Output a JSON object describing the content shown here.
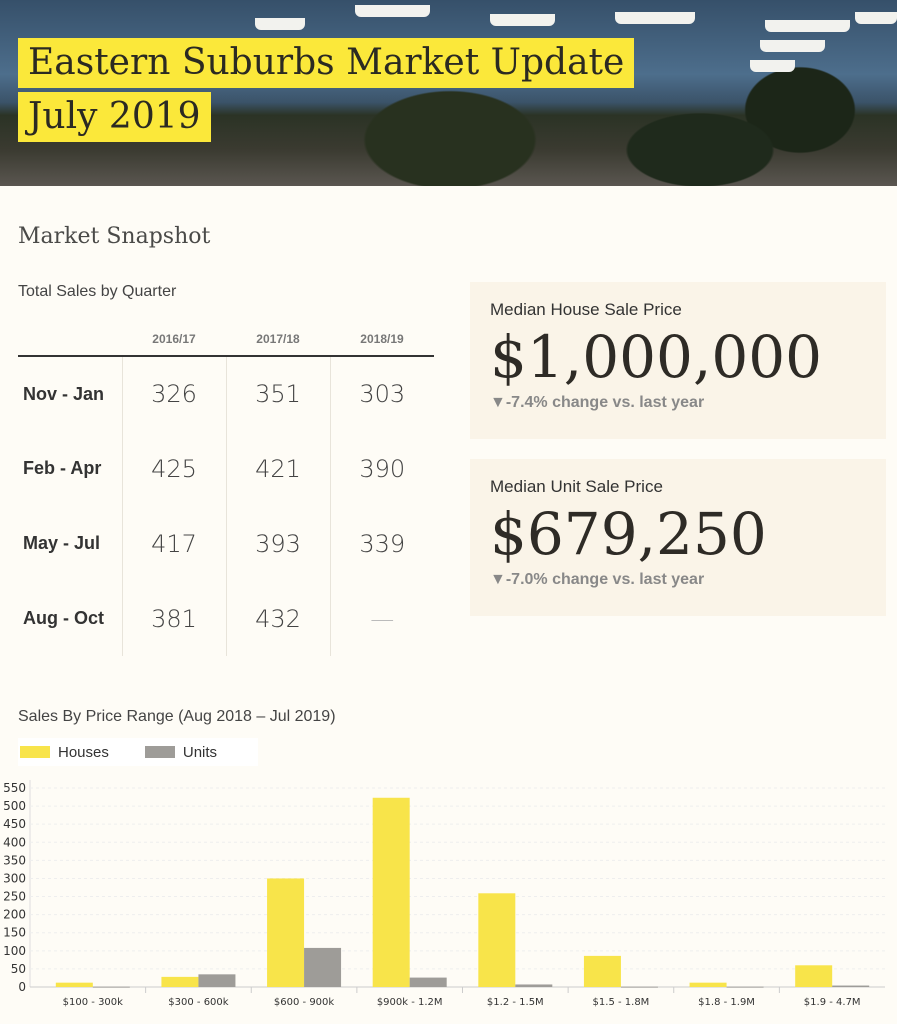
{
  "header": {
    "title": "Eastern Suburbs Market Update",
    "subtitle": "July 2019"
  },
  "snapshot": {
    "heading": "Market Snapshot",
    "table_label": "Total Sales by Quarter",
    "columns": [
      "2016/17",
      "2017/18",
      "2018/19"
    ],
    "rows": [
      {
        "label": "Nov - Jan",
        "values": [
          "326",
          "351",
          "303"
        ]
      },
      {
        "label": "Feb - Apr",
        "values": [
          "425",
          "421",
          "390"
        ]
      },
      {
        "label": "May - Jul",
        "values": [
          "417",
          "393",
          "339"
        ]
      },
      {
        "label": "Aug - Oct",
        "values": [
          "381",
          "432",
          "—"
        ]
      }
    ]
  },
  "cards": [
    {
      "title": "Median House Sale Price",
      "value": "$1,000,000",
      "change": "▼-7.4% change vs. last year"
    },
    {
      "title": "Median Unit Sale Price",
      "value": "$679,250",
      "change": "▼-7.0% change vs. last year"
    }
  ],
  "colors": {
    "houses": "#f8e44a",
    "units": "#9e9c98",
    "accent": "#fbe83a"
  },
  "chart_data": {
    "type": "bar",
    "title": "Sales By Price Range (Aug 2018 – Jul 2019)",
    "categories": [
      "$100 - 300k",
      "$300 - 600k",
      "$600 - 900k",
      "$900k - 1.2M",
      "$1.2 - 1.5M",
      "$1.5 - 1.8M",
      "$1.8 - 1.9M",
      "$1.9 - 4.7M"
    ],
    "series": [
      {
        "name": "Houses",
        "values": [
          12,
          28,
          300,
          523,
          259,
          86,
          12,
          60
        ]
      },
      {
        "name": "Units",
        "values": [
          1,
          35,
          108,
          26,
          7,
          1,
          1,
          4
        ]
      }
    ],
    "yticks": [
      0,
      50,
      100,
      150,
      200,
      250,
      300,
      350,
      400,
      450,
      500,
      550
    ],
    "ylim": [
      0,
      550
    ],
    "legend": "top-left",
    "grid": true
  }
}
